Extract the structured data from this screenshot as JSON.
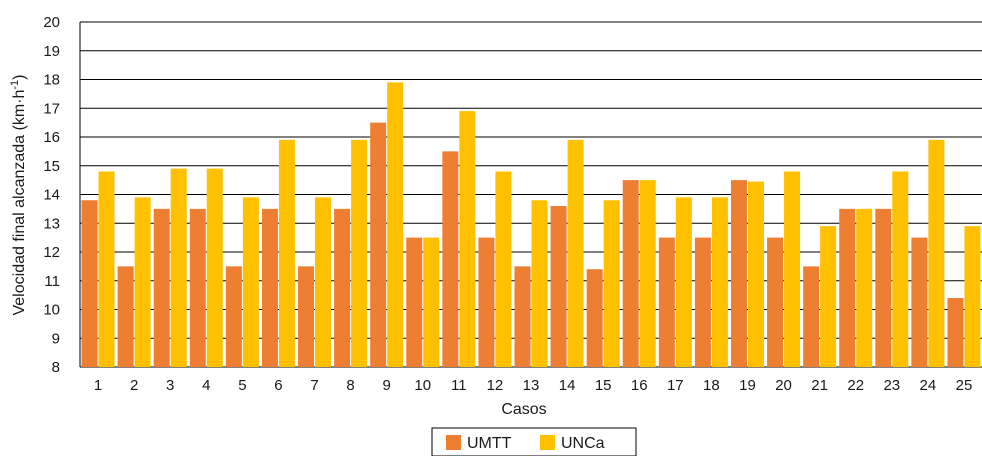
{
  "chart_data": {
    "type": "bar",
    "title": "",
    "xlabel": "Casos",
    "ylabel": "Velocidad final alcanzada (km·h",
    "ylabel_sup": "-1",
    "ylabel_close": ")",
    "ylim": [
      8,
      20
    ],
    "yticks": [
      8,
      9,
      10,
      11,
      12,
      13,
      14,
      15,
      16,
      17,
      18,
      19,
      20
    ],
    "grid": true,
    "legend_position": "bottom-center",
    "categories": [
      "1",
      "2",
      "3",
      "4",
      "5",
      "6",
      "7",
      "8",
      "9",
      "10",
      "11",
      "12",
      "13",
      "14",
      "15",
      "16",
      "17",
      "18",
      "19",
      "20",
      "21",
      "22",
      "23",
      "24",
      "25"
    ],
    "series": [
      {
        "name": "UMTT",
        "color": "#EE7E32",
        "values": [
          13.8,
          11.5,
          13.5,
          13.5,
          11.5,
          13.5,
          11.5,
          13.5,
          16.5,
          12.5,
          15.5,
          12.5,
          11.5,
          13.6,
          11.4,
          14.5,
          12.5,
          12.5,
          14.5,
          12.5,
          11.5,
          13.5,
          13.5,
          12.5,
          10.4
        ]
      },
      {
        "name": "UNCa",
        "color": "#FFC000",
        "values": [
          14.8,
          13.9,
          14.9,
          14.9,
          13.9,
          15.9,
          13.9,
          15.9,
          17.9,
          12.5,
          16.9,
          14.8,
          13.8,
          15.9,
          13.8,
          14.5,
          13.9,
          13.9,
          14.45,
          14.8,
          12.9,
          13.5,
          14.8,
          15.9,
          12.9
        ]
      }
    ]
  }
}
